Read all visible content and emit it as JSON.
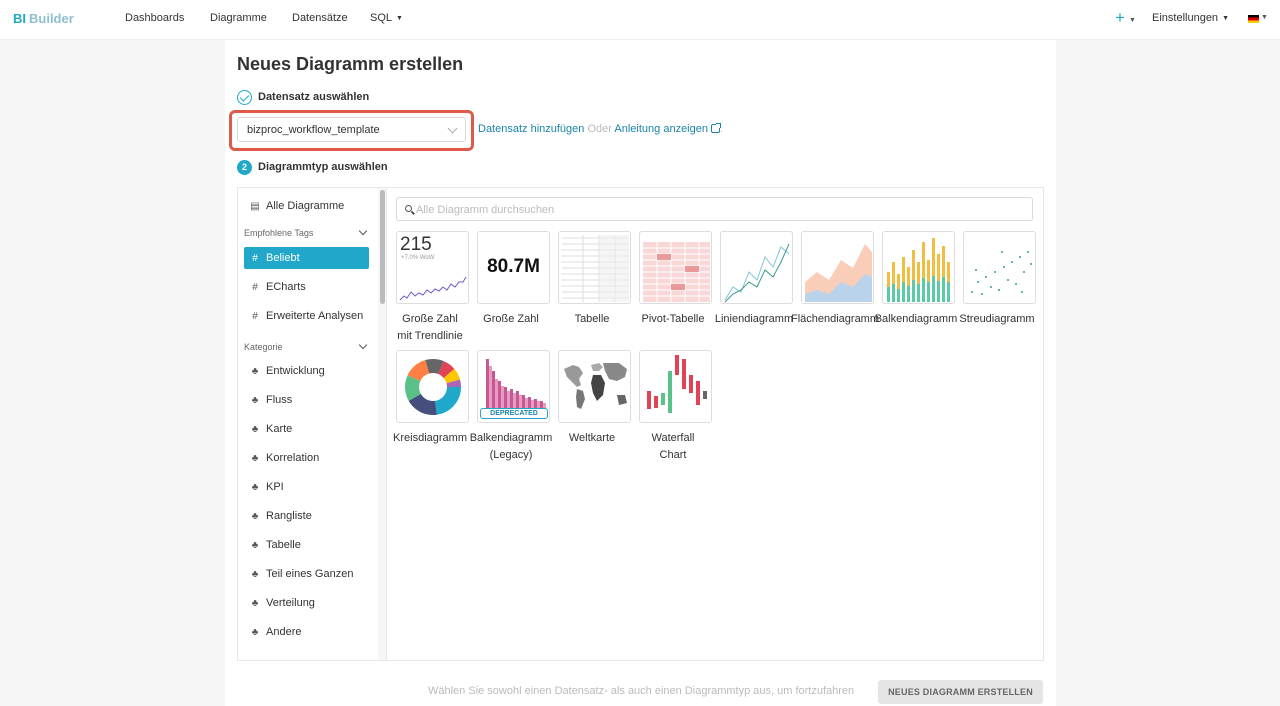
{
  "navbar": {
    "logo_bi": "BI",
    "logo_builder": "Builder",
    "items": [
      "Dashboards",
      "Diagramme",
      "Datensätze",
      "SQL"
    ],
    "settings": "Einstellungen",
    "plus_icon": "plus-icon",
    "language_flag": "de-flag-icon"
  },
  "page": {
    "title": "Neues Diagramm erstellen"
  },
  "step1": {
    "label": "Datensatz auswählen",
    "dataset_value": "bizproc_workflow_template",
    "add_dataset_link": "Datensatz hinzufügen",
    "or": "Oder",
    "guide_link": "Anleitung anzeigen",
    "period": "."
  },
  "step2": {
    "number": "2",
    "label": "Diagrammtyp auswählen"
  },
  "sidebar": {
    "all_charts": "Alle Diagramme",
    "recommended_tags_header": "Empfohlene Tags",
    "tags": [
      "Beliebt",
      "ECharts",
      "Erweiterte Analysen"
    ],
    "category_header": "Kategorie",
    "categories": [
      "Entwicklung",
      "Fluss",
      "Karte",
      "Korrelation",
      "KPI",
      "Rangliste",
      "Tabelle",
      "Teil eines Ganzen",
      "Verteilung",
      "Andere"
    ]
  },
  "search": {
    "placeholder": "Alle Diagramm durchsuchen"
  },
  "charts": [
    {
      "label_line1": "Große Zahl",
      "label_line2": "mit Trendlinie",
      "thumb_number": "215",
      "thumb_sub": "+7.0% WoW"
    },
    {
      "label_line1": "Große Zahl",
      "label_line2": "",
      "thumb_number": "80.7M"
    },
    {
      "label_line1": "Tabelle",
      "label_line2": ""
    },
    {
      "label_line1": "Pivot-Tabelle",
      "label_line2": ""
    },
    {
      "label_line1": "Liniendiagramm",
      "label_line2": ""
    },
    {
      "label_line1": "Flächendiagramm",
      "label_line2": ""
    },
    {
      "label_line1": "Balkendiagramm",
      "label_line2": ""
    },
    {
      "label_line1": "Streudiagramm",
      "label_line2": ""
    },
    {
      "label_line1": "Kreisdiagramm",
      "label_line2": ""
    },
    {
      "label_line1": "Balkendiagramm",
      "label_line2": "(Legacy)",
      "badge": "DEPRECATED"
    },
    {
      "label_line1": "Weltkarte",
      "label_line2": ""
    },
    {
      "label_line1": "Waterfall",
      "label_line2": "Chart"
    }
  ],
  "footer": {
    "hint": "Wählen Sie sowohl einen Datensatz- als auch einen Diagrammtyp aus, um fortzufahren",
    "create_button": "NEUES DIAGRAMM ERSTELLEN"
  },
  "colors": {
    "accent": "#20a7c9",
    "link": "#1985a8",
    "highlight": "#e05a4a"
  }
}
